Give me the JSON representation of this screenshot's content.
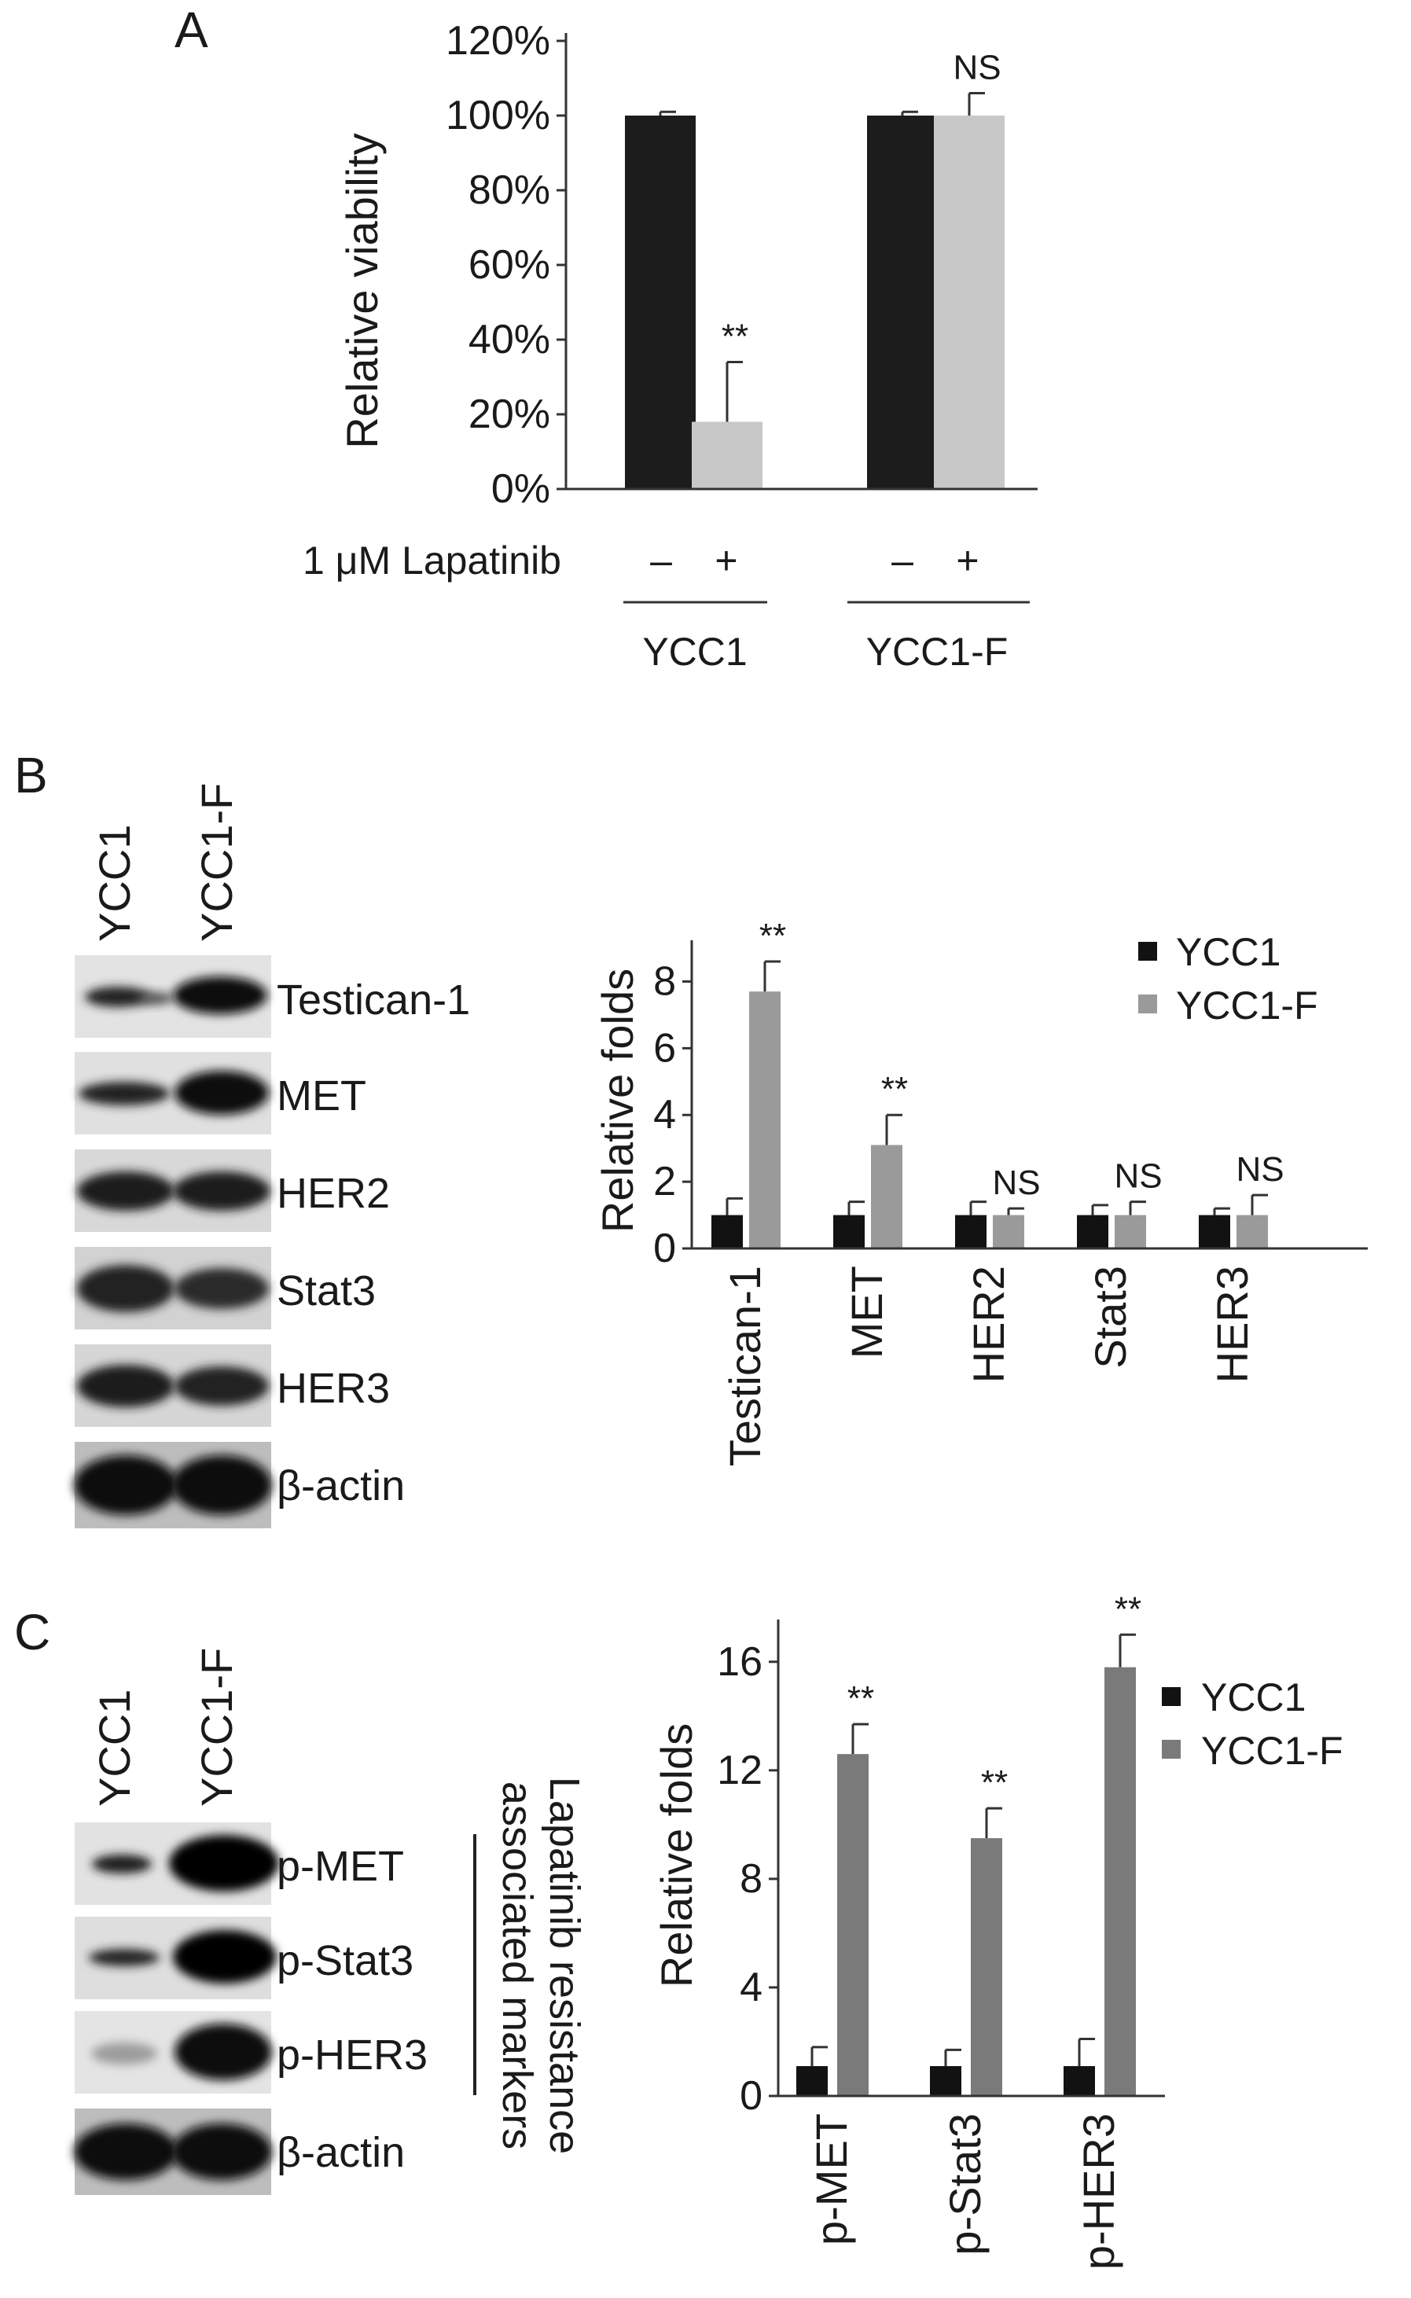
{
  "colors": {
    "dark": "#1c1c1c",
    "black_series": "#121212",
    "light_gray": "#c8c8c8",
    "mid_gray": "#9a9a9a",
    "dark_gray": "#7a7a7a",
    "axis": "#333333"
  },
  "panel_a": {
    "letter": "A",
    "treatment_label": "1 μM Lapatinib",
    "minus": "–",
    "plus": "+",
    "groups": [
      "YCC1",
      "YCC1-F"
    ]
  },
  "panel_b": {
    "letter": "B",
    "lanes": [
      "YCC1",
      "YCC1-F"
    ],
    "blots": [
      "Testican-1",
      "MET",
      "HER2",
      "Stat3",
      "HER3",
      "β-actin"
    ]
  },
  "panel_c": {
    "letter": "C",
    "lanes": [
      "YCC1",
      "YCC1-F"
    ],
    "blots": [
      "p-MET",
      "p-Stat3",
      "p-HER3",
      "β-actin"
    ],
    "bracket_label_line1": "Lapatinib resistance",
    "bracket_label_line2": "associated markers"
  },
  "chart_data": [
    {
      "type": "bar",
      "panel": "A",
      "ylabel": "Relative viability",
      "ylim": [
        0,
        120
      ],
      "yticks": [
        "0%",
        "20%",
        "40%",
        "60%",
        "80%",
        "100%",
        "120%"
      ],
      "bars": [
        {
          "group": "YCC1",
          "lapatinib": "–",
          "value": 100,
          "error": 1,
          "color": "dark"
        },
        {
          "group": "YCC1",
          "lapatinib": "+",
          "value": 18,
          "error": 16,
          "color": "light",
          "sig": "**"
        },
        {
          "group": "YCC1-F",
          "lapatinib": "–",
          "value": 100,
          "error": 1,
          "color": "dark"
        },
        {
          "group": "YCC1-F",
          "lapatinib": "+",
          "value": 100,
          "error": 6,
          "color": "light",
          "sig": "NS"
        }
      ],
      "grid": false
    },
    {
      "type": "bar",
      "panel": "B",
      "ylabel": "Relative folds",
      "ylim": [
        0,
        9
      ],
      "yticks": [
        "0",
        "2",
        "4",
        "6",
        "8"
      ],
      "categories": [
        "Testican-1",
        "MET",
        "HER2",
        "Stat3",
        "HER3"
      ],
      "series": [
        {
          "name": "YCC1",
          "values": [
            1,
            1,
            1,
            1,
            1
          ],
          "errors": [
            0.5,
            0.4,
            0.4,
            0.3,
            0.2
          ]
        },
        {
          "name": "YCC1-F",
          "values": [
            7.7,
            3.1,
            1.0,
            1.0,
            1.0
          ],
          "errors": [
            0.9,
            0.9,
            0.2,
            0.4,
            0.6
          ]
        }
      ],
      "significance": [
        "**",
        "**",
        "NS",
        "NS",
        "NS"
      ],
      "legend": "top-right",
      "grid": false
    },
    {
      "type": "bar",
      "panel": "C",
      "ylabel": "Relative folds",
      "ylim": [
        0,
        17.5
      ],
      "yticks": [
        "0",
        "4",
        "8",
        "12",
        "16"
      ],
      "categories": [
        "p-MET",
        "p-Stat3",
        "p-HER3"
      ],
      "series": [
        {
          "name": "YCC1",
          "values": [
            1.1,
            1.1,
            1.1
          ],
          "errors": [
            0.7,
            0.6,
            1.0
          ]
        },
        {
          "name": "YCC1-F",
          "values": [
            12.6,
            9.5,
            15.8
          ],
          "errors": [
            1.1,
            1.1,
            1.2
          ]
        }
      ],
      "significance": [
        "**",
        "**",
        "**"
      ],
      "legend": "top-right",
      "grid": false
    }
  ]
}
